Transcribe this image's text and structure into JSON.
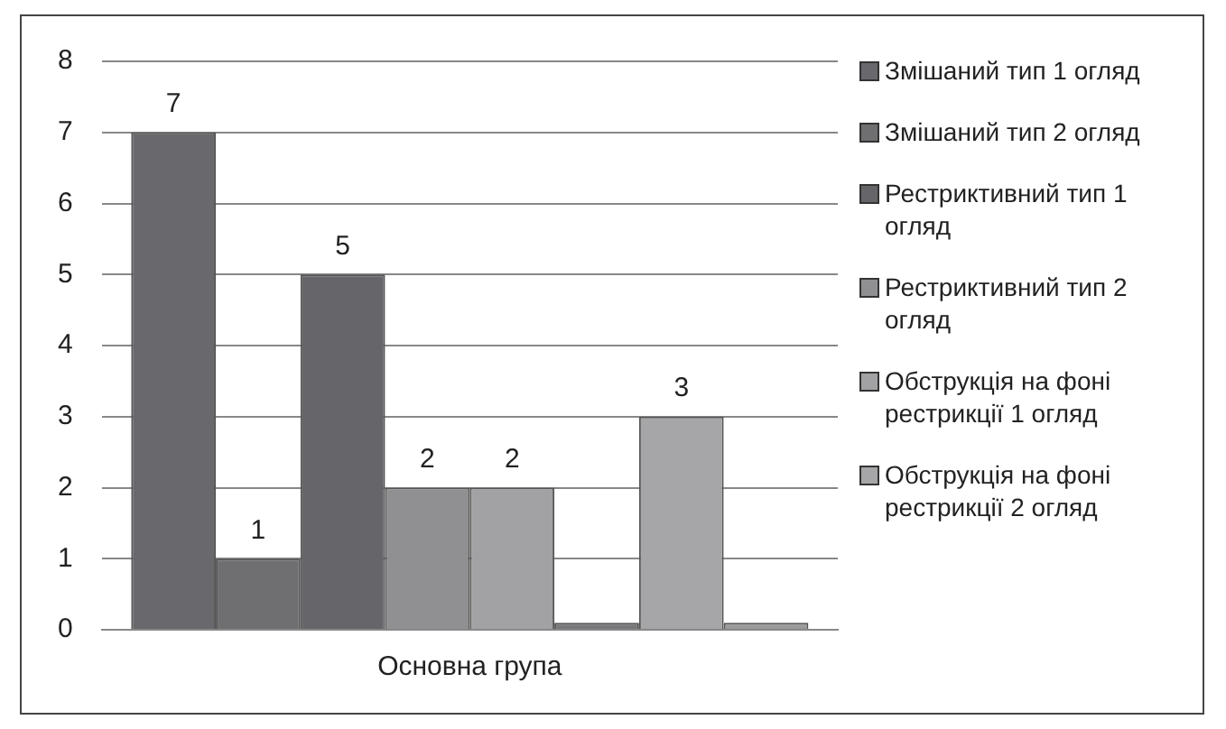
{
  "chart_data": {
    "type": "bar",
    "categories": [
      "Основна група"
    ],
    "series": [
      {
        "name": "Змішаний тип 1 огляд",
        "color": "#69696d",
        "values": [
          7
        ],
        "value_labels": [
          "7"
        ]
      },
      {
        "name": "Змішаний тип 2 огляд",
        "color": "#6f6f72",
        "values": [
          1
        ],
        "value_labels": [
          "1"
        ]
      },
      {
        "name": "Рестриктивний тип 1 огляд",
        "color": "#66666a",
        "values": [
          5
        ],
        "value_labels": [
          "5"
        ]
      },
      {
        "name": "Рестриктивний тип 2 огляд",
        "color": "#909093",
        "values": [
          2
        ],
        "value_labels": [
          "2"
        ]
      },
      {
        "name": "Обструкція на фоні рестрикції 1 огляд",
        "color": "#a2a2a5",
        "values": [
          2
        ],
        "value_labels": [
          "2"
        ]
      },
      {
        "color": "#77777a",
        "values": [
          0.1
        ],
        "value_labels": [
          null
        ]
      },
      {
        "name": "Обструкція на фоні рестрикції 2 огляд",
        "color": "#a6a6a9",
        "values": [
          3
        ],
        "value_labels": [
          "3"
        ]
      },
      {
        "color": "#9a9a9d",
        "values": [
          0.1
        ],
        "value_labels": [
          null
        ]
      }
    ],
    "ylim": [
      0,
      8
    ],
    "yticks": [
      0,
      1,
      2,
      3,
      4,
      5,
      6,
      7,
      8
    ],
    "grid": "y",
    "legend": "right"
  }
}
